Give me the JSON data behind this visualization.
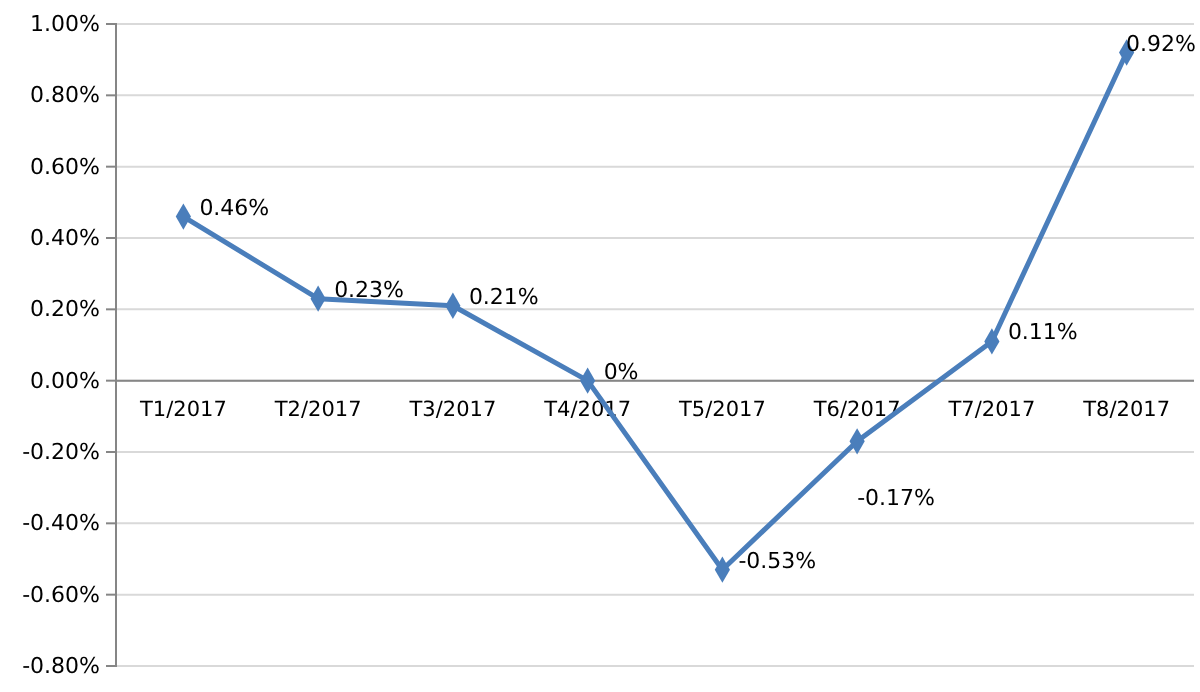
{
  "chart_data": {
    "type": "line",
    "categories": [
      "T1/2017",
      "T2/2017",
      "T3/2017",
      "T4/2017",
      "T5/2017",
      "T6/2017",
      "T7/2017",
      "T8/2017"
    ],
    "series": [
      {
        "color": "#4a7ebb",
        "values": [
          0.46,
          0.23,
          0.21,
          0,
          -0.53,
          -0.17,
          0.11,
          0.92
        ],
        "value_labels": [
          "0.46%",
          "0.23%",
          "0.21%",
          "0%",
          "-0.53%",
          "-0.17%",
          "0.11%",
          "0.92%"
        ]
      }
    ],
    "ylim": [
      -0.8,
      1
    ],
    "yticks": [
      {
        "value": -0.8,
        "label": "-0.80%"
      },
      {
        "value": -0.6,
        "label": "-0.60%"
      },
      {
        "value": -0.4,
        "label": "-0.40%"
      },
      {
        "value": -0.2,
        "label": "-0.20%"
      },
      {
        "value": 0,
        "label": "0.00%"
      },
      {
        "value": 0.2,
        "label": "0.20%"
      },
      {
        "value": 0.4,
        "label": "0.40%"
      },
      {
        "value": 0.6,
        "label": "0.60%"
      },
      {
        "value": 0.8,
        "label": "0.80%"
      },
      {
        "value": 1,
        "label": "1.00%"
      }
    ],
    "grid": "y",
    "marker": "diamond",
    "line_style": "solid"
  }
}
